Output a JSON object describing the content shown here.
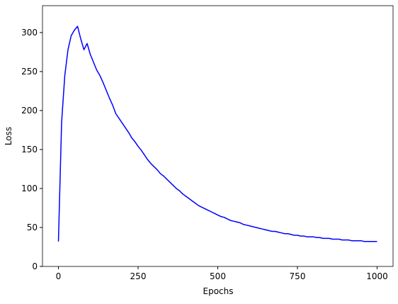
{
  "chart_data": {
    "type": "line",
    "xlabel": "Epochs",
    "ylabel": "Loss",
    "x": [
      0,
      10,
      20,
      30,
      40,
      50,
      60,
      70,
      80,
      90,
      100,
      110,
      120,
      130,
      140,
      150,
      160,
      170,
      180,
      190,
      200,
      210,
      220,
      230,
      240,
      250,
      260,
      270,
      280,
      290,
      300,
      310,
      320,
      330,
      340,
      350,
      360,
      370,
      380,
      390,
      400,
      410,
      420,
      430,
      440,
      450,
      460,
      470,
      480,
      490,
      500,
      510,
      520,
      530,
      540,
      550,
      560,
      570,
      580,
      590,
      600,
      610,
      620,
      630,
      640,
      650,
      660,
      670,
      680,
      690,
      700,
      710,
      720,
      730,
      740,
      750,
      760,
      770,
      780,
      790,
      800,
      810,
      820,
      830,
      840,
      850,
      860,
      870,
      880,
      890,
      900,
      910,
      920,
      930,
      940,
      950,
      960,
      970,
      980,
      990,
      1000
    ],
    "series": [
      {
        "color": "#0000ff",
        "values": [
          32,
          185,
          245,
          278,
          296,
          303,
          308,
          292,
          278,
          286,
          272,
          262,
          252,
          245,
          236,
          226,
          216,
          207,
          196,
          190,
          184,
          178,
          172,
          165,
          160,
          154,
          149,
          143,
          137,
          132,
          128,
          124,
          119,
          116,
          112,
          108,
          104,
          100,
          97,
          93,
          90,
          87,
          84,
          81,
          78,
          76,
          74,
          72,
          70,
          68,
          66,
          64,
          63,
          61,
          59,
          58,
          57,
          56,
          54,
          53,
          52,
          51,
          50,
          49,
          48,
          47,
          46,
          45,
          45,
          44,
          43,
          42,
          42,
          41,
          40,
          40,
          39,
          39,
          38,
          38,
          38,
          37,
          37,
          36,
          36,
          36,
          35,
          35,
          35,
          34,
          34,
          34,
          33,
          33,
          33,
          33,
          32,
          32,
          32,
          32,
          32
        ]
      }
    ],
    "xlim": [
      -50,
      1050
    ],
    "ylim": [
      0,
      334.5
    ],
    "xticks": [
      0,
      250,
      500,
      750,
      1000
    ],
    "yticks": [
      0,
      50,
      100,
      150,
      200,
      250,
      300
    ]
  }
}
